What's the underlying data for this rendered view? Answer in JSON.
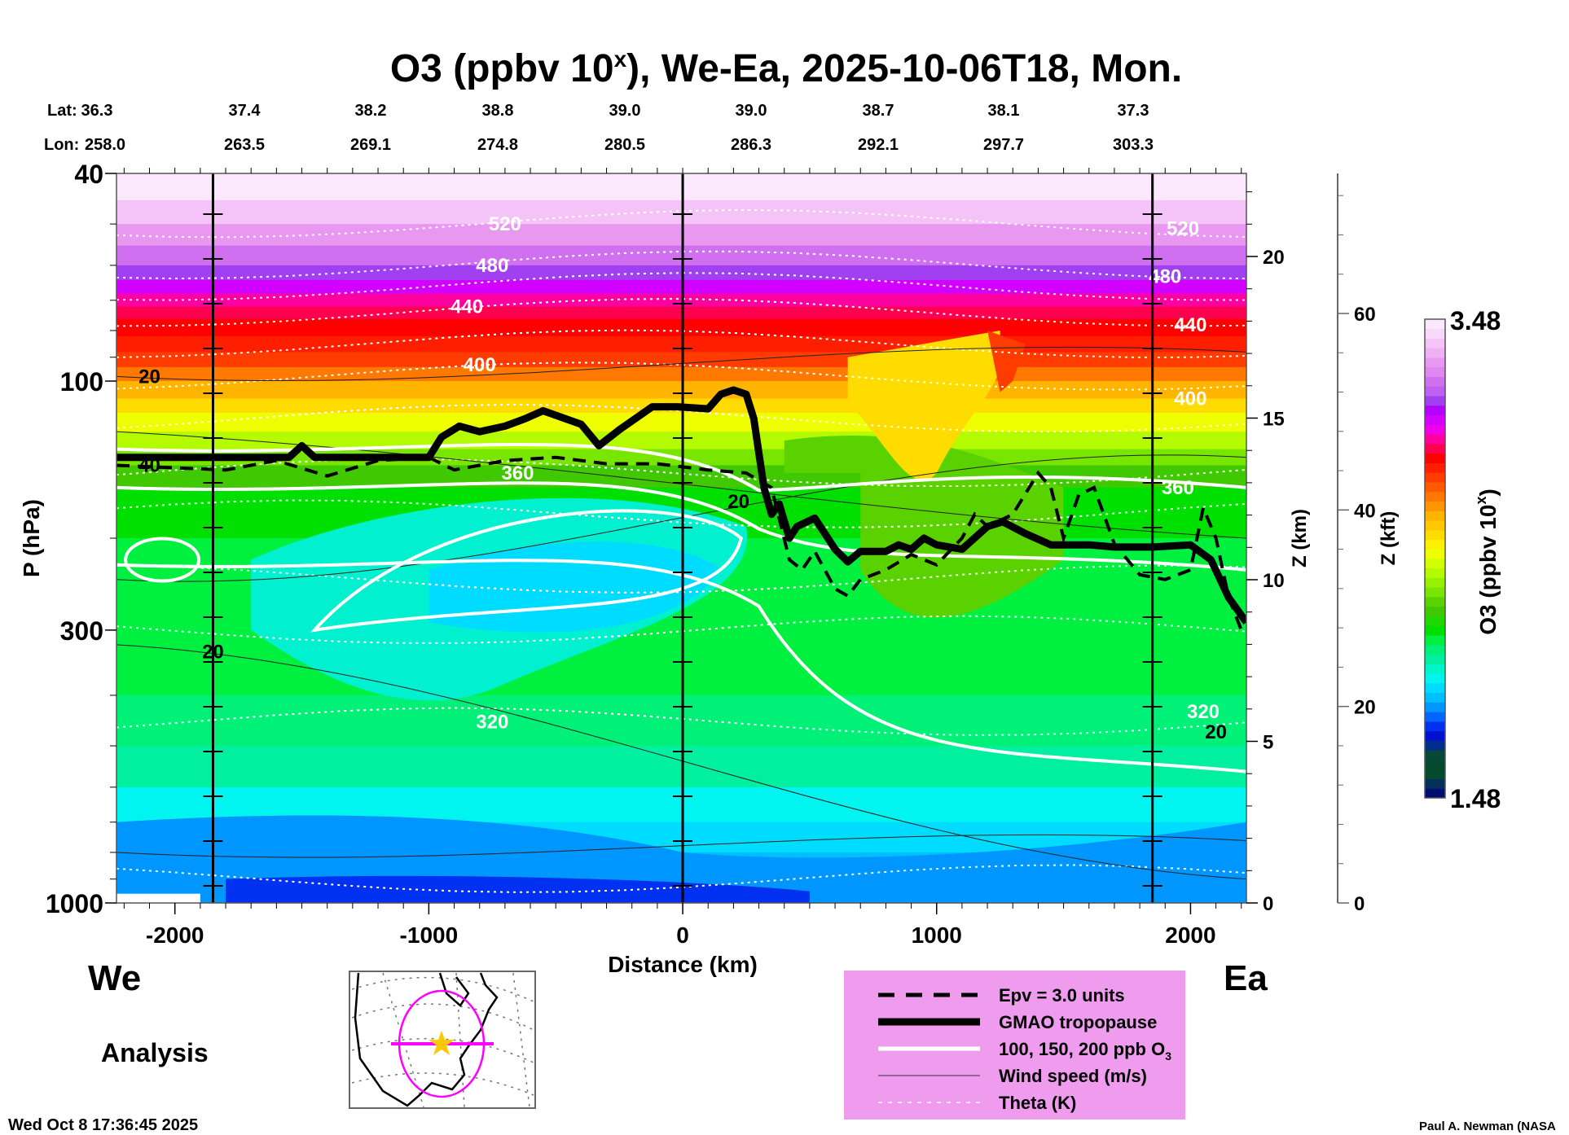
{
  "chart_data": {
    "type": "heatmap",
    "title_main": "O3 (ppbv 10",
    "title_sup": "x",
    "title_rest": "), We-Ea, 2025-10-06T18, Mon.",
    "lat_label": "Lat:",
    "lon_label": "Lon:",
    "lats": [
      "36.3",
      "37.4",
      "38.2",
      "38.8",
      "39.0",
      "39.0",
      "38.7",
      "38.1",
      "37.3"
    ],
    "lons": [
      "258.0",
      "263.5",
      "269.1",
      "274.8",
      "280.5",
      "286.3",
      "292.1",
      "297.7",
      "303.3"
    ],
    "xlabel": "Distance (km)",
    "xlim": [
      -2230,
      2220
    ],
    "xticks": [
      -2000,
      -1000,
      0,
      1000,
      2000
    ],
    "xtick_labels": [
      "-2000",
      "-1000",
      "0",
      "1000",
      "2000"
    ],
    "ylabel": "P (hPa)",
    "ylim": [
      1000,
      40
    ],
    "yticks": [
      40,
      100,
      300,
      1000
    ],
    "ytick_labels": [
      "40",
      "100",
      "300",
      "1000"
    ],
    "y2label": "Z (km)",
    "y2ticks": [
      0,
      5,
      10,
      15,
      20
    ],
    "y2tick_labels": [
      "0",
      "5",
      "10",
      "15",
      "20"
    ],
    "y3label": "Z (kft)",
    "y3ticks": [
      0,
      20,
      40,
      60
    ],
    "y3tick_labels": [
      "0",
      "20",
      "40",
      "60"
    ],
    "colorbar": {
      "label_main": "O3 (ppbv 10",
      "label_sup": "x",
      "label_rest": ")",
      "min_label": "1.48",
      "max_label": "3.48",
      "min": 1.48,
      "max": 3.48,
      "colors": [
        "#000e6e",
        "#05305a",
        "#034a2e",
        "#034a2e",
        "#06483a",
        "#002e8a",
        "#0010d0",
        "#0030f0",
        "#0066ff",
        "#0096ff",
        "#00bfff",
        "#00dcff",
        "#00f5f0",
        "#00f5c8",
        "#00f0a0",
        "#00f078",
        "#00f040",
        "#00e000",
        "#20d800",
        "#40c800",
        "#5ad200",
        "#78e600",
        "#96f000",
        "#b4fa00",
        "#d2ff00",
        "#f0ff00",
        "#fff000",
        "#ffdc00",
        "#ffc800",
        "#ffb400",
        "#ff9600",
        "#ff7800",
        "#ff5a00",
        "#ff3c00",
        "#ff1e00",
        "#ff0000",
        "#ff0050",
        "#ff00a0",
        "#f000e6",
        "#d200ff",
        "#b400ff",
        "#a040f0",
        "#c060f0",
        "#d070f0",
        "#e088f0",
        "#e898f0",
        "#f0b0f4",
        "#f4c4f8",
        "#f8d8fb",
        "#fbe8fd"
      ]
    },
    "vertical_markers_km": [
      -1850,
      0,
      1850
    ],
    "theta_labels": [
      {
        "text": "520",
        "x": -700,
        "p": 50
      },
      {
        "text": "480",
        "x": -750,
        "p": 60
      },
      {
        "text": "440",
        "x": -850,
        "p": 72
      },
      {
        "text": "400",
        "x": -800,
        "p": 93
      },
      {
        "text": "360",
        "x": -650,
        "p": 150
      },
      {
        "text": "320",
        "x": -750,
        "p": 450
      },
      {
        "text": "520",
        "x": 1970,
        "p": 51
      },
      {
        "text": "480",
        "x": 1900,
        "p": 63
      },
      {
        "text": "440",
        "x": 2000,
        "p": 78
      },
      {
        "text": "400",
        "x": 2000,
        "p": 108
      },
      {
        "text": "360",
        "x": 1950,
        "p": 160
      },
      {
        "text": "320",
        "x": 2050,
        "p": 430
      }
    ],
    "wind_labels": [
      {
        "text": "20",
        "x": -2100,
        "p": 98
      },
      {
        "text": "40",
        "x": -2100,
        "p": 145
      },
      {
        "text": "20",
        "x": -1850,
        "p": 330
      },
      {
        "text": "20",
        "x": 220,
        "p": 170
      },
      {
        "text": "20",
        "x": 2100,
        "p": 470
      }
    ],
    "tropopause_km_hpa": [
      [
        -2230,
        140
      ],
      [
        -1550,
        140
      ],
      [
        -1500,
        133
      ],
      [
        -1450,
        140
      ],
      [
        -1000,
        140
      ],
      [
        -950,
        128
      ],
      [
        -880,
        122
      ],
      [
        -800,
        125
      ],
      [
        -700,
        122
      ],
      [
        -620,
        118
      ],
      [
        -550,
        114
      ],
      [
        -400,
        121
      ],
      [
        -330,
        133
      ],
      [
        -250,
        124
      ],
      [
        -120,
        112
      ],
      [
        -20,
        112
      ],
      [
        100,
        113
      ],
      [
        150,
        106
      ],
      [
        200,
        104
      ],
      [
        250,
        106
      ],
      [
        280,
        118
      ],
      [
        320,
        160
      ],
      [
        350,
        180
      ],
      [
        380,
        172
      ],
      [
        420,
        200
      ],
      [
        450,
        190
      ],
      [
        520,
        183
      ],
      [
        600,
        210
      ],
      [
        650,
        222
      ],
      [
        700,
        212
      ],
      [
        800,
        212
      ],
      [
        850,
        206
      ],
      [
        900,
        210
      ],
      [
        950,
        200
      ],
      [
        1000,
        206
      ],
      [
        1100,
        210
      ],
      [
        1200,
        190
      ],
      [
        1260,
        186
      ],
      [
        1350,
        196
      ],
      [
        1450,
        206
      ],
      [
        1600,
        206
      ],
      [
        1700,
        208
      ],
      [
        1850,
        208
      ],
      [
        2000,
        206
      ],
      [
        2080,
        220
      ],
      [
        2150,
        260
      ],
      [
        2220,
        290
      ]
    ],
    "epv_km_hpa": [
      [
        -2230,
        145
      ],
      [
        -1800,
        148
      ],
      [
        -1600,
        142
      ],
      [
        -1400,
        152
      ],
      [
        -1200,
        142
      ],
      [
        -1000,
        140
      ],
      [
        -900,
        148
      ],
      [
        -700,
        142
      ],
      [
        -500,
        140
      ],
      [
        -300,
        144
      ],
      [
        -100,
        144
      ],
      [
        100,
        148
      ],
      [
        250,
        150
      ],
      [
        350,
        160
      ],
      [
        420,
        220
      ],
      [
        470,
        230
      ],
      [
        520,
        212
      ],
      [
        600,
        250
      ],
      [
        650,
        258
      ],
      [
        700,
        240
      ],
      [
        800,
        230
      ],
      [
        900,
        215
      ],
      [
        1000,
        225
      ],
      [
        1100,
        200
      ],
      [
        1150,
        180
      ],
      [
        1200,
        190
      ],
      [
        1300,
        180
      ],
      [
        1400,
        150
      ],
      [
        1450,
        160
      ],
      [
        1500,
        200
      ],
      [
        1560,
        165
      ],
      [
        1620,
        160
      ],
      [
        1700,
        205
      ],
      [
        1800,
        235
      ],
      [
        1900,
        240
      ],
      [
        2000,
        230
      ],
      [
        2050,
        175
      ],
      [
        2100,
        200
      ],
      [
        2150,
        260
      ],
      [
        2200,
        300
      ],
      [
        2220,
        300
      ]
    ],
    "legend": [
      {
        "style": "dashed",
        "label": "Epv = 3.0 units"
      },
      {
        "style": "thick",
        "label": "GMAO tropopause"
      },
      {
        "style": "white",
        "label": "100, 150, 200 ppb O",
        "label_sub": "3"
      },
      {
        "style": "thin",
        "label": "Wind speed (m/s)"
      },
      {
        "style": "dotted",
        "label": "Theta (K)"
      }
    ]
  },
  "side_labels": {
    "west": "We",
    "east": "Ea",
    "analysis": "Analysis"
  },
  "footer": {
    "timestamp": "Wed Oct  8 17:36:45 2025",
    "credit": "Paul A. Newman (NASA"
  },
  "locator_map": {
    "star_color": "#ffc800",
    "ring_color": "#ff00ff"
  }
}
